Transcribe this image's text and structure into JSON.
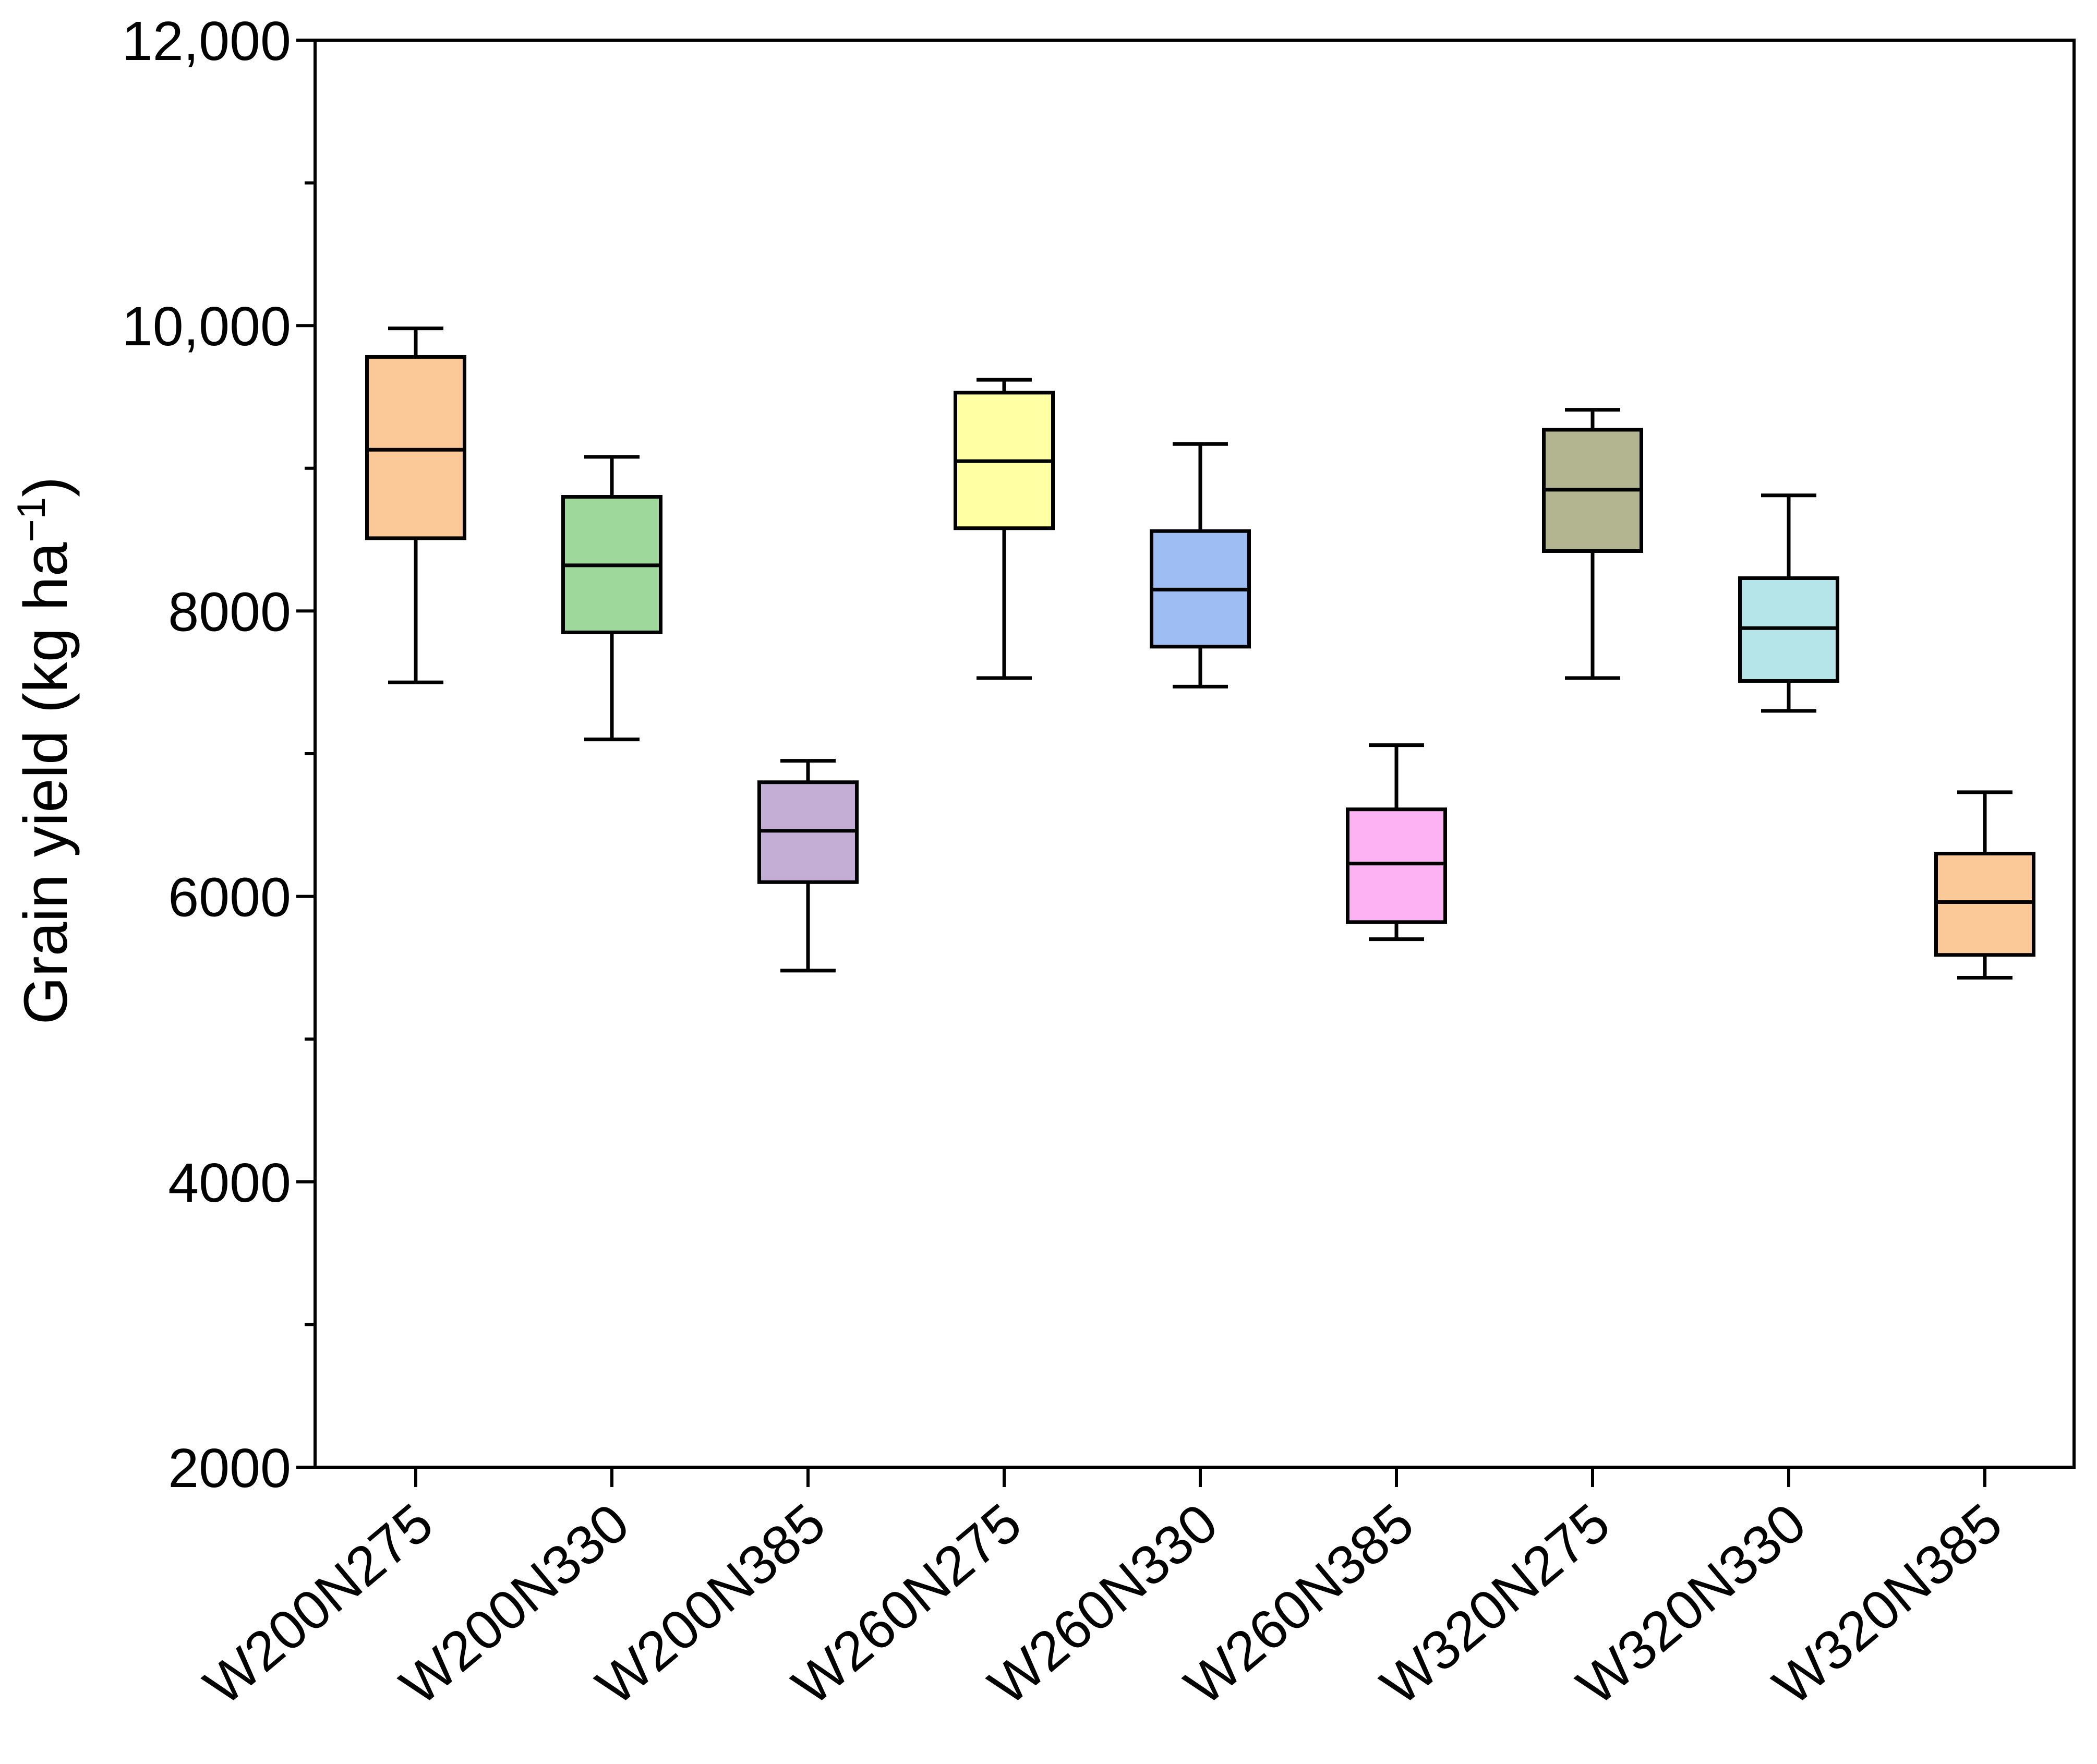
{
  "chart_data": {
    "type": "box",
    "title": "",
    "xlabel": "",
    "ylabel": "Grain yield (kg ha",
    "ylabel_superscript": "−1",
    "ylabel_suffix": ")",
    "ylim": [
      2000,
      12000
    ],
    "yticks": [
      2000,
      4000,
      6000,
      8000,
      10000,
      12000
    ],
    "ytick_labels": [
      "2000",
      "4000",
      "6000",
      "8000",
      "10,000",
      "12,000"
    ],
    "y_minor_step": 1000,
    "categories": [
      "W200N275",
      "W200N330",
      "W200N385",
      "W260N275",
      "W260N330",
      "W260N385",
      "W320N275",
      "W320N330",
      "W320N385"
    ],
    "boxes": [
      {
        "name": "W200N275",
        "whisker_low": 7500,
        "q1": 8510,
        "median": 9130,
        "q3": 9780,
        "whisker_high": 9980,
        "color": "#FBC897"
      },
      {
        "name": "W200N330",
        "whisker_low": 7100,
        "q1": 7850,
        "median": 8320,
        "q3": 8800,
        "whisker_high": 9080,
        "color": "#9ED89A"
      },
      {
        "name": "W200N385",
        "whisker_low": 5480,
        "q1": 6100,
        "median": 6460,
        "q3": 6800,
        "whisker_high": 6950,
        "color": "#C4AED6"
      },
      {
        "name": "W260N275",
        "whisker_low": 7530,
        "q1": 8580,
        "median": 9050,
        "q3": 9530,
        "whisker_high": 9620,
        "color": "#FFFFA3"
      },
      {
        "name": "W260N330",
        "whisker_low": 7470,
        "q1": 7750,
        "median": 8150,
        "q3": 8560,
        "whisker_high": 9170,
        "color": "#9EBDF2"
      },
      {
        "name": "W260N385",
        "whisker_low": 5700,
        "q1": 5820,
        "median": 6230,
        "q3": 6610,
        "whisker_high": 7060,
        "color": "#FDB2F4"
      },
      {
        "name": "W320N275",
        "whisker_low": 7530,
        "q1": 8420,
        "median": 8850,
        "q3": 9270,
        "whisker_high": 9410,
        "color": "#B3B590"
      },
      {
        "name": "W320N330",
        "whisker_low": 7300,
        "q1": 7510,
        "median": 7880,
        "q3": 8230,
        "whisker_high": 8810,
        "color": "#B5E5E8"
      },
      {
        "name": "W320N385",
        "whisker_low": 5430,
        "q1": 5590,
        "median": 5960,
        "q3": 6300,
        "whisker_high": 6730,
        "color": "#FBC897"
      }
    ],
    "grid": false,
    "legend": "none"
  }
}
